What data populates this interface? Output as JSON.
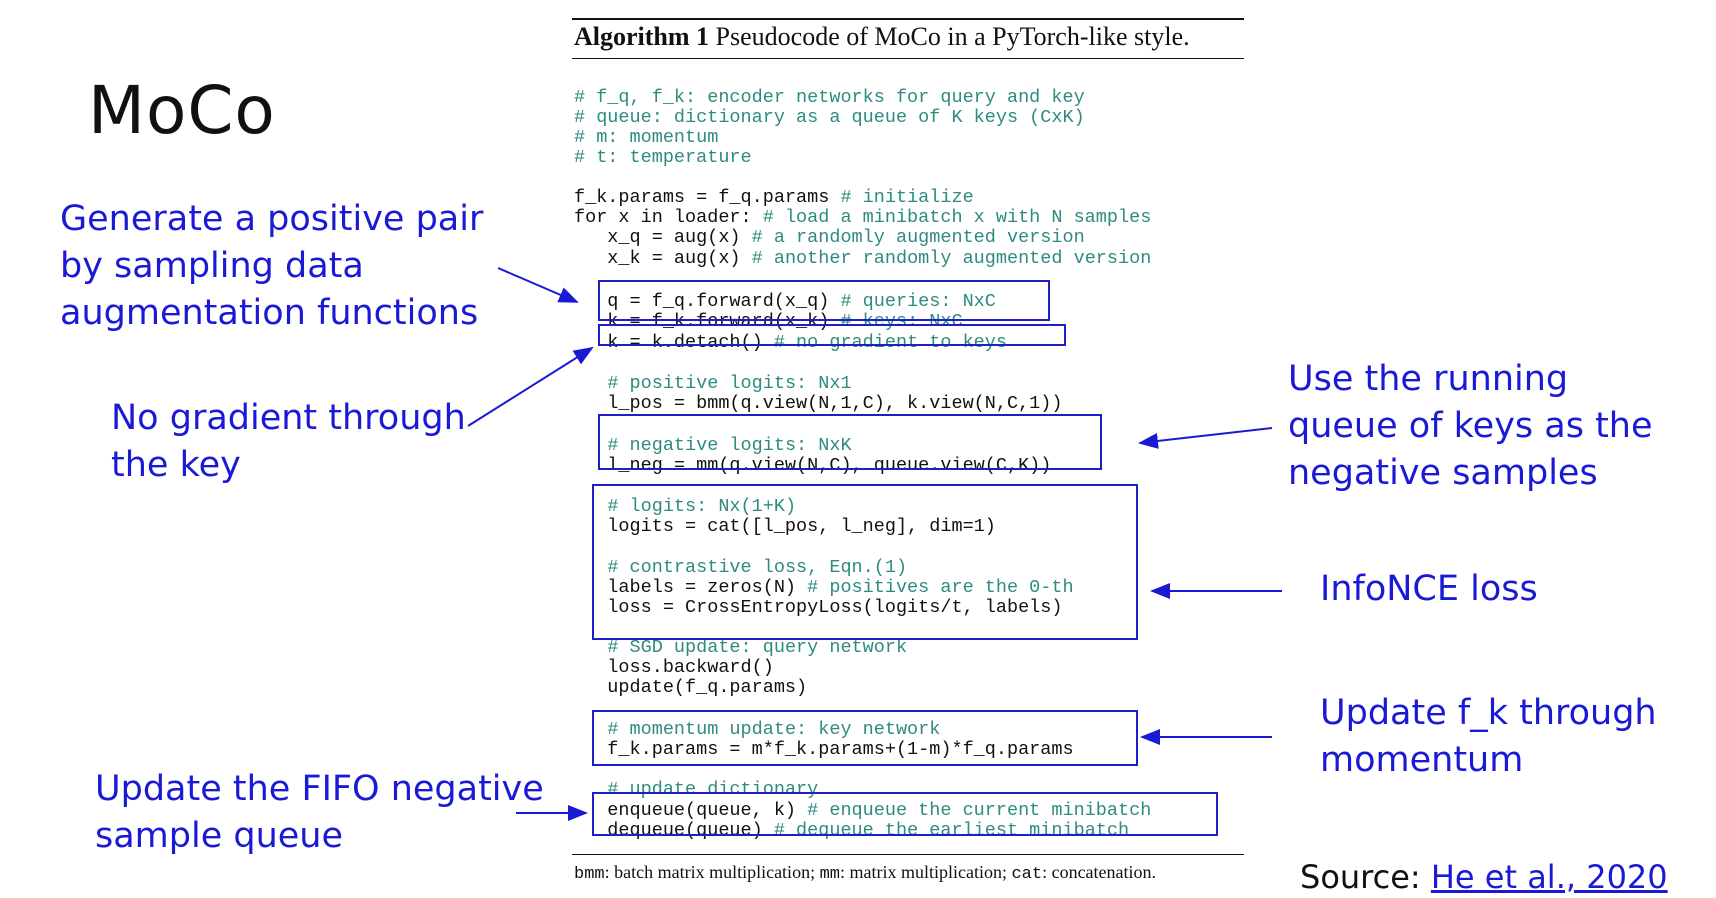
{
  "title": "MoCo",
  "annotations": {
    "positive_pair": [
      "Generate a positive pair",
      "by sampling data",
      "augmentation functions"
    ],
    "no_gradient": [
      "No gradient through",
      "the key"
    ],
    "running_queue": [
      "Use the running",
      "queue of keys as the",
      "negative samples"
    ],
    "infonce": [
      "InfoNCE loss"
    ],
    "momentum_update": [
      "Update f_k through",
      "momentum"
    ],
    "fifo_queue": [
      "Update the FIFO negative",
      "sample queue"
    ]
  },
  "algorithm": {
    "label": "Algorithm 1",
    "caption": "Pseudocode of MoCo in a PyTorch-like style.",
    "lines": [
      {
        "code": "",
        "comment": "# f_q, f_k: encoder networks for query and key"
      },
      {
        "code": "",
        "comment": "# queue: dictionary as a queue of K keys (CxK)"
      },
      {
        "code": "",
        "comment": "# m: momentum"
      },
      {
        "code": "",
        "comment": "# t: temperature"
      },
      {
        "code": "f_k.params = f_q.params ",
        "comment": "# initialize"
      },
      {
        "code": "for x in loader: ",
        "comment": "# load a minibatch x with N samples"
      },
      {
        "code": "   x_q = aug(x) ",
        "comment": "# a randomly augmented version"
      },
      {
        "code": "   x_k = aug(x) ",
        "comment": "# another randomly augmented version"
      },
      {
        "code": "   q = f_q.forward(x_q) ",
        "comment": "# queries: NxC"
      },
      {
        "code": "   k = f_k.forward(x_k) ",
        "comment": "# keys: NxC"
      },
      {
        "code": "   k = k.detach() ",
        "comment": "# no gradient to keys"
      },
      {
        "code": "   ",
        "comment": "# positive logits: Nx1"
      },
      {
        "code": "   l_pos = bmm(q.view(N,1,C), k.view(N,C,1))",
        "comment": ""
      },
      {
        "code": "   ",
        "comment": "# negative logits: NxK"
      },
      {
        "code": "   l_neg = mm(q.view(N,C), queue.view(C,K))",
        "comment": ""
      },
      {
        "code": "   ",
        "comment": "# logits: Nx(1+K)"
      },
      {
        "code": "   logits = cat([l_pos, l_neg], dim=1)",
        "comment": ""
      },
      {
        "code": "   ",
        "comment": "# contrastive loss, Eqn.(1)"
      },
      {
        "code": "   labels = zeros(N) ",
        "comment": "# positives are the 0-th"
      },
      {
        "code": "   loss = CrossEntropyLoss(logits/t, labels)",
        "comment": ""
      },
      {
        "code": "   ",
        "comment": "# SGD update: query network"
      },
      {
        "code": "   loss.backward()",
        "comment": ""
      },
      {
        "code": "   update(f_q.params)",
        "comment": ""
      },
      {
        "code": "   ",
        "comment": "# momentum update: key network"
      },
      {
        "code": "   f_k.params = m*f_k.params+(1-m)*f_q.params",
        "comment": ""
      },
      {
        "code": "   ",
        "comment": "# update dictionary"
      },
      {
        "code": "   enqueue(queue, k) ",
        "comment": "# enqueue the current minibatch"
      },
      {
        "code": "   dequeue(queue) ",
        "comment": "# dequeue the earliest minibatch"
      }
    ],
    "footnote": {
      "bmm": "bmm",
      "bmm_desc": ": batch matrix multiplication; ",
      "mm": "mm",
      "mm_desc": ": matrix multiplication; ",
      "cat": "cat",
      "cat_desc": ": concatenation."
    }
  },
  "source": {
    "label": "Source: ",
    "link_text": "He et al., 2020"
  },
  "colors": {
    "annotation": "#1a1ad6",
    "box": "#1f1fc8",
    "comment": "#2e8b80"
  }
}
